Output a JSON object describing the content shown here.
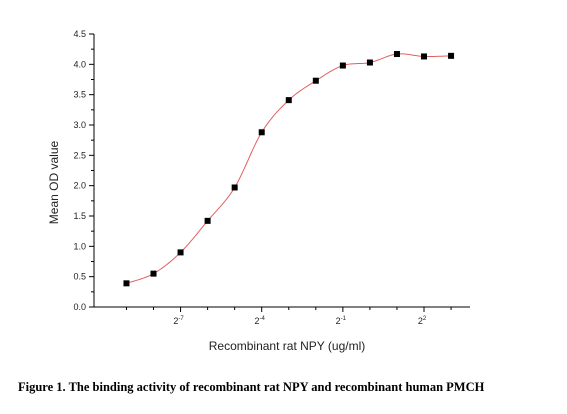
{
  "figure": {
    "caption": "Figure 1. The binding activity of recombinant rat NPY and recombinant human PMCH"
  },
  "chart_data": {
    "type": "scatter",
    "xlabel": "Recombinant rat NPY (ug/ml)",
    "ylabel": "Mean OD value",
    "x_scale": "log2",
    "x_ticks": [
      {
        "exp": -7,
        "label": "2",
        "sup": "-7"
      },
      {
        "exp": -4,
        "label": "2",
        "sup": "-4"
      },
      {
        "exp": -1,
        "label": "2",
        "sup": "-1"
      },
      {
        "exp": 2,
        "label": "2",
        "sup": "2"
      }
    ],
    "x_minor_exps": [
      -9,
      -8,
      -6,
      -5,
      -3,
      -2,
      0,
      1,
      3
    ],
    "y_ticks": [
      "0.0",
      "0.5",
      "1.0",
      "1.5",
      "2.0",
      "2.5",
      "3.0",
      "3.5",
      "4.0",
      "4.5"
    ],
    "ylim": [
      0,
      4.5
    ],
    "x_exp_range": [
      -10.2,
      3.7
    ],
    "grid": false,
    "series": [
      {
        "marker_color": "#000000",
        "line_color": "#e06060",
        "x_exp": [
          -9,
          -8,
          -7,
          -6,
          -5,
          -4,
          -3,
          -2,
          -1,
          0,
          1,
          2,
          3
        ],
        "values": [
          0.39,
          0.55,
          0.9,
          1.42,
          1.97,
          2.88,
          3.41,
          3.73,
          3.98,
          4.03,
          4.17,
          4.13,
          4.14
        ]
      }
    ]
  }
}
